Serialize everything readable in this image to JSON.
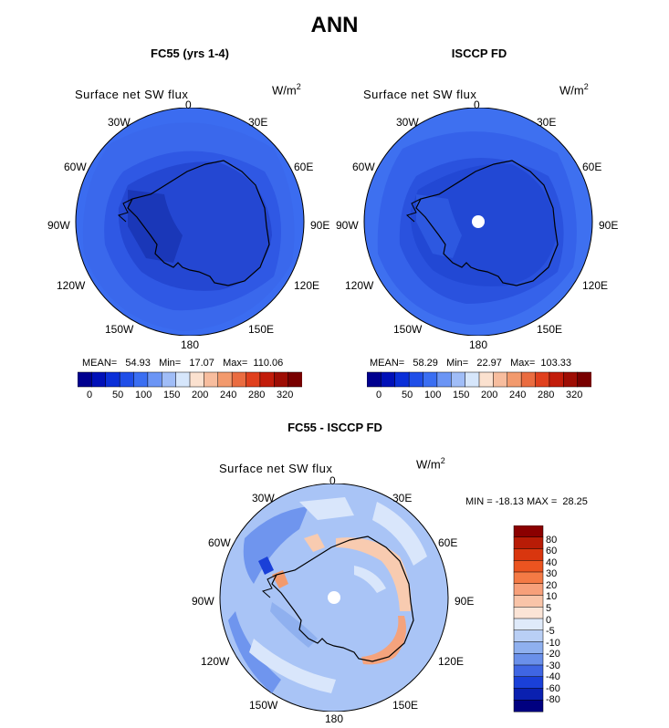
{
  "title": "ANN",
  "panels": [
    {
      "title": "FC55 (yrs 1-4)",
      "field": "Surface net SW flux",
      "units": "W/m",
      "units_exp": "2",
      "stats": "MEAN=   54.93   Min=   17.07   Max=  110.06",
      "lon_labels": [
        "0",
        "30E",
        "60E",
        "90E",
        "120E",
        "150E",
        "180",
        "150W",
        "120W",
        "90W",
        "60W",
        "30W"
      ]
    },
    {
      "title": "ISCCP FD",
      "field": "Surface net SW flux",
      "units": "W/m",
      "units_exp": "2",
      "stats": "MEAN=   58.29   Min=   22.97   Max=  103.33",
      "lon_labels": [
        "0",
        "30E",
        "60E",
        "90E",
        "120E",
        "150E",
        "180",
        "150W",
        "120W",
        "90W",
        "60W",
        "30W"
      ]
    },
    {
      "title": "FC55 - ISCCP FD",
      "field": "Surface net SW flux",
      "units": "W/m",
      "units_exp": "2",
      "stats": "MIN = -18.13 MAX =  28.25",
      "lon_labels": [
        "0",
        "30E",
        "60E",
        "90E",
        "120E",
        "150E",
        "180",
        "150W",
        "120W",
        "90W",
        "60W",
        "30W"
      ]
    }
  ],
  "colorbar_abs": {
    "labels": [
      "0",
      "50",
      "100",
      "150",
      "200",
      "240",
      "280",
      "320"
    ],
    "colors": [
      "#00008f",
      "#0010b8",
      "#0a2fd8",
      "#1f4ee8",
      "#3a6ef2",
      "#6b95f5",
      "#a0bdf7",
      "#d6e6fb",
      "#fbe1cf",
      "#f7bd9e",
      "#f29a6d",
      "#ea6c40",
      "#e0401d",
      "#c21c0a",
      "#9e0d04",
      "#780000"
    ]
  },
  "colorbar_diff": {
    "labels": [
      "80",
      "60",
      "40",
      "30",
      "20",
      "10",
      "5",
      "0",
      "-5",
      "-10",
      "-20",
      "-30",
      "-40",
      "-60",
      "-80"
    ],
    "colors": [
      "#8b0000",
      "#b81c06",
      "#d9360e",
      "#eb5420",
      "#f47a45",
      "#f7a07a",
      "#f9c4a8",
      "#fbe4d6",
      "#dfeafa",
      "#b9cff5",
      "#8fb0ef",
      "#6a90ea",
      "#3f66e3",
      "#1a40d8",
      "#0a20b0",
      "#000080"
    ]
  }
}
